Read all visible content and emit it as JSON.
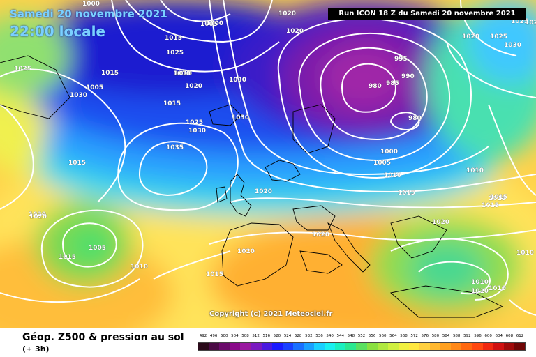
{
  "map": {
    "date_title": "Samedi 20 novembre 2021",
    "time_title": "22:00 locale",
    "run_label": "Run ICON 18 Z du Samedi 20 novembre 2021",
    "copyright": "Copyright (c) 2021 Meteociel.fr",
    "isobar_labels": [
      "1000",
      "1005",
      "1015",
      "1025",
      "1010",
      "1030",
      "1020",
      "1015",
      "1005",
      "1000",
      "1010",
      "1020",
      "1025",
      "1030",
      "1015",
      "1030",
      "1025",
      "1030",
      "1035",
      "1015",
      "1020",
      "1020",
      "1005",
      "1015",
      "1010",
      "1025",
      "1020",
      "995",
      "990",
      "980",
      "985",
      "980",
      "1000",
      "1005",
      "1010",
      "1010",
      "1015",
      "1020",
      "1020",
      "1015",
      "1015",
      "1020",
      "1015",
      "1010",
      "1010",
      "1010",
      "1010",
      "1020",
      "1025",
      "1030",
      "1025",
      "1020",
      "1020",
      "1015"
    ],
    "high_label": "1035",
    "low_label": "980"
  },
  "legend": {
    "title": "Géop. Z500 & pression au sol",
    "subtitle": "(+ 3h)",
    "scale": [
      "492",
      "496",
      "500",
      "504",
      "508",
      "512",
      "516",
      "520",
      "524",
      "528",
      "532",
      "536",
      "540",
      "544",
      "548",
      "552",
      "556",
      "560",
      "564",
      "568",
      "572",
      "576",
      "580",
      "584",
      "588",
      "592",
      "596",
      "600",
      "604",
      "608",
      "612"
    ],
    "scale_colors": [
      "#2a0a1a",
      "#4a0a44",
      "#6a0a6a",
      "#8a0a8a",
      "#9a1aa0",
      "#7a1ac0",
      "#4a1ae0",
      "#1a1aff",
      "#1a40ff",
      "#1a70ff",
      "#1aa0ff",
      "#1ad0ff",
      "#1af0f0",
      "#1af0c0",
      "#2ae890",
      "#5ae060",
      "#8ae040",
      "#b0e840",
      "#d0f040",
      "#f0f040",
      "#ffe840",
      "#ffd040",
      "#ffb830",
      "#ffa020",
      "#ff8818",
      "#ff6810",
      "#ff4810",
      "#f02810",
      "#d01010",
      "#a00a0a",
      "#700606"
    ]
  }
}
